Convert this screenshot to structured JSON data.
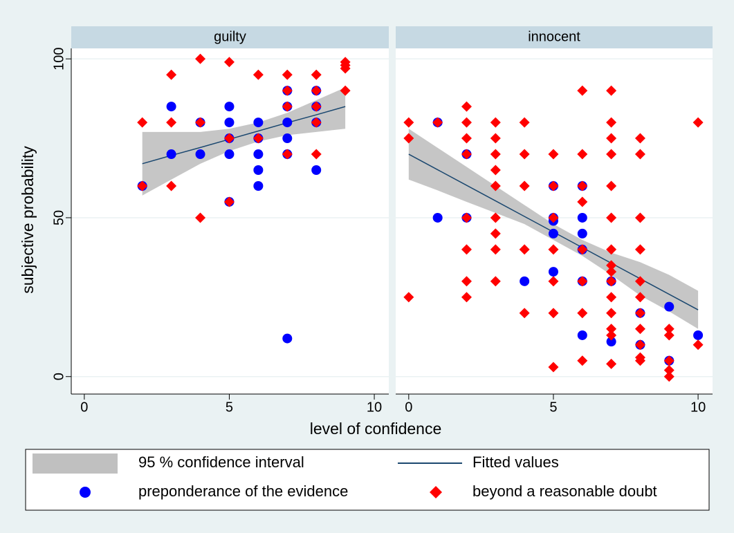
{
  "chart_data": {
    "type": "scatter",
    "xlabel": "level of confidence",
    "ylabel": "subjective probability",
    "xlim": [
      -0.45,
      10.5
    ],
    "xticks": [
      0,
      5,
      10
    ],
    "ylim": [
      -5.5,
      103.3
    ],
    "yticks": [
      0,
      50,
      100
    ],
    "grid": true,
    "legend": [
      {
        "name": "95 % confidence interval",
        "kind": "band",
        "color": "#c0c0c0"
      },
      {
        "name": "Fitted values",
        "kind": "line",
        "color": "#1a476f"
      },
      {
        "name": "preponderance of the evidence",
        "kind": "circle",
        "color": "#0000ff"
      },
      {
        "name": "beyond a reasonable doubt",
        "kind": "diamond",
        "color": "#ff0000"
      }
    ],
    "panels": [
      {
        "title": "guilty",
        "band": {
          "x": [
            2,
            3,
            4,
            5,
            6,
            7,
            8,
            9
          ],
          "lower": [
            57,
            62,
            67,
            71,
            74,
            76,
            77,
            78
          ],
          "upper": [
            77,
            77,
            77,
            78,
            80,
            83,
            87,
            91
          ]
        },
        "fit": {
          "x": [
            2,
            3,
            4,
            5,
            6,
            7,
            8,
            9
          ],
          "values": [
            67,
            69.6,
            72.1,
            74.7,
            77.3,
            79.9,
            82.4,
            85
          ]
        },
        "circles": {
          "x": [
            3,
            3,
            4,
            4,
            5,
            5,
            5,
            5,
            5,
            6,
            6,
            6,
            6,
            6,
            7,
            7,
            7,
            7,
            7,
            7,
            8,
            8,
            8,
            8,
            2
          ],
          "values": [
            85,
            70,
            70,
            80,
            85,
            80,
            75,
            70,
            55,
            80,
            75,
            70,
            65,
            60,
            90,
            85,
            80,
            75,
            70,
            12,
            90,
            85,
            80,
            65,
            60
          ]
        },
        "diamonds": {
          "x": [
            2,
            2,
            3,
            3,
            3,
            4,
            4,
            4,
            5,
            5,
            5,
            6,
            6,
            7,
            7,
            7,
            7,
            8,
            8,
            8,
            8,
            8,
            9,
            9,
            9,
            9
          ],
          "values": [
            80,
            60,
            95,
            80,
            60,
            100,
            80,
            50,
            99,
            75,
            55,
            95,
            75,
            95,
            90,
            85,
            70,
            95,
            90,
            85,
            80,
            70,
            99,
            98,
            97,
            90
          ]
        }
      },
      {
        "title": "innocent",
        "band": {
          "x": [
            0,
            1,
            2,
            3,
            4,
            5,
            6,
            7,
            8,
            9,
            10
          ],
          "lower": [
            62,
            58.6,
            55,
            51.5,
            48,
            43,
            38,
            32,
            25.5,
            20.5,
            15
          ],
          "upper": [
            78,
            72,
            66,
            60,
            54,
            48,
            43,
            39,
            36,
            32,
            27
          ]
        },
        "fit": {
          "x": [
            0,
            1,
            2,
            3,
            4,
            5,
            6,
            7,
            8,
            9,
            10
          ],
          "values": [
            70,
            65.1,
            60.2,
            55.3,
            50.4,
            45.5,
            40.6,
            35.7,
            30.8,
            25.9,
            21
          ]
        },
        "circles": {
          "x": [
            1,
            1,
            2,
            2,
            5,
            5,
            5,
            5,
            5,
            6,
            6,
            6,
            6,
            6,
            6,
            7,
            7,
            8,
            8,
            9,
            9,
            10,
            4
          ],
          "values": [
            80,
            50,
            70,
            50,
            60,
            50,
            49,
            45,
            33,
            60,
            50,
            45,
            40,
            30,
            13,
            30,
            11,
            20,
            10,
            22,
            5,
            13,
            30
          ]
        },
        "diamonds": {
          "x": [
            0,
            0,
            0,
            1,
            2,
            2,
            2,
            2,
            2,
            2,
            2,
            2,
            3,
            3,
            3,
            3,
            3,
            3,
            3,
            3,
            3,
            4,
            4,
            4,
            4,
            4,
            5,
            5,
            5,
            5,
            5,
            5,
            5,
            6,
            6,
            6,
            6,
            6,
            6,
            6,
            6,
            7,
            7,
            7,
            7,
            7,
            7,
            7,
            7,
            7,
            7,
            7,
            7,
            7,
            7,
            7,
            8,
            8,
            8,
            8,
            8,
            8,
            8,
            8,
            8,
            8,
            8,
            9,
            9,
            9,
            9,
            9,
            10,
            10
          ],
          "values": [
            80,
            75,
            25,
            80,
            85,
            80,
            75,
            70,
            50,
            40,
            30,
            25,
            80,
            75,
            70,
            65,
            60,
            50,
            45,
            40,
            30,
            80,
            70,
            60,
            40,
            20,
            70,
            60,
            50,
            40,
            30,
            20,
            3,
            90,
            70,
            60,
            55,
            40,
            30,
            20,
            5,
            90,
            80,
            75,
            70,
            60,
            50,
            40,
            35,
            33,
            30,
            25,
            20,
            15,
            13,
            4,
            75,
            70,
            50,
            40,
            30,
            25,
            20,
            15,
            10,
            6,
            5,
            15,
            13,
            5,
            2,
            0,
            80,
            10
          ]
        }
      }
    ]
  }
}
